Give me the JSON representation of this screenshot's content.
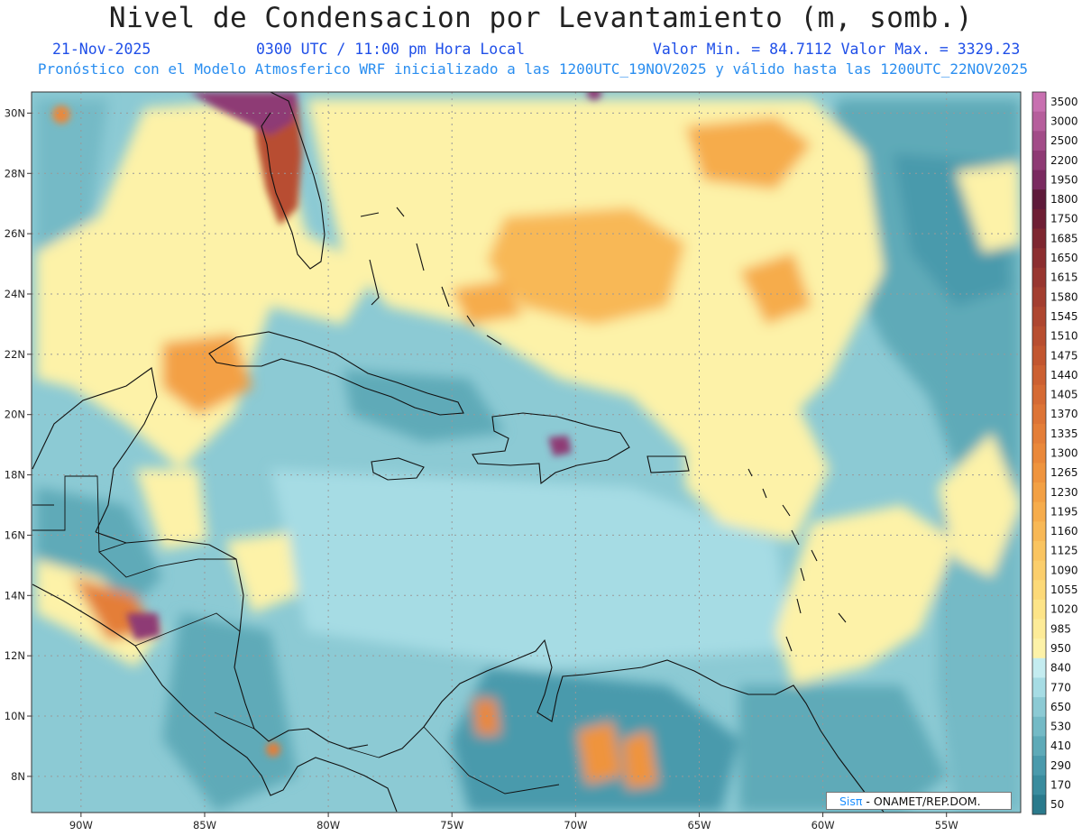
{
  "header": {
    "title": "Nivel de Condensacion por Levantamiento (m, somb.)",
    "date": "21-Nov-2025",
    "time": "0300 UTC / 11:00 pm Hora Local",
    "minmax": "Valor Min. = 84.7112  Valor Max. = 3329.23",
    "model_line": "Pronóstico con el Modelo Atmosferico WRF inicializado a las 1200UTC_19NOV2025 y válido hasta las  1200UTC_22NOV2025"
  },
  "map": {
    "lon_range": [
      -92,
      -52
    ],
    "lat_range": [
      6.8,
      30.7
    ],
    "lon_ticks": [
      "90W",
      "85W",
      "80W",
      "75W",
      "70W",
      "65W",
      "60W",
      "55W"
    ],
    "lon_tick_values": [
      -90,
      -85,
      -80,
      -75,
      -70,
      -65,
      -60,
      -55
    ],
    "lat_ticks": [
      "8N",
      "10N",
      "12N",
      "14N",
      "16N",
      "18N",
      "20N",
      "22N",
      "24N",
      "26N",
      "28N",
      "30N"
    ],
    "lat_tick_values": [
      8,
      10,
      12,
      14,
      16,
      18,
      20,
      22,
      24,
      26,
      28,
      30
    ],
    "grid": true
  },
  "colorbar": {
    "levels": [
      "50",
      "170",
      "290",
      "410",
      "530",
      "650",
      "770",
      "840",
      "950",
      "985",
      "1020",
      "1055",
      "1090",
      "1125",
      "1160",
      "1195",
      "1230",
      "1265",
      "1300",
      "1335",
      "1370",
      "1405",
      "1440",
      "1475",
      "1510",
      "1545",
      "1580",
      "1615",
      "1650",
      "1685",
      "1750",
      "1800",
      "1950",
      "2200",
      "2500",
      "3000",
      "3500"
    ],
    "colors": [
      "#2a7a8c",
      "#3a8c9e",
      "#4a9aac",
      "#5eaab8",
      "#74bac6",
      "#8ccad4",
      "#a6dce4",
      "#c4ecf0",
      "#fdf2a8",
      "#fdeb98",
      "#fde488",
      "#fcd978",
      "#fbce6c",
      "#fac460",
      "#f8b856",
      "#f6ac4c",
      "#f3a044",
      "#ef943e",
      "#ea883a",
      "#e47e38",
      "#dd7436",
      "#d56a34",
      "#cc6032",
      "#c25630",
      "#b84e30",
      "#ae4630",
      "#a33e30",
      "#983630",
      "#8c2e30",
      "#7e2630",
      "#6e1e34",
      "#5e1a3a",
      "#7a2a60",
      "#8e3a74",
      "#a24c88",
      "#b65e9c",
      "#c870b0"
    ]
  },
  "credit": {
    "brand": "Sisπ",
    "text": " - ONAMET/REP.DOM."
  }
}
